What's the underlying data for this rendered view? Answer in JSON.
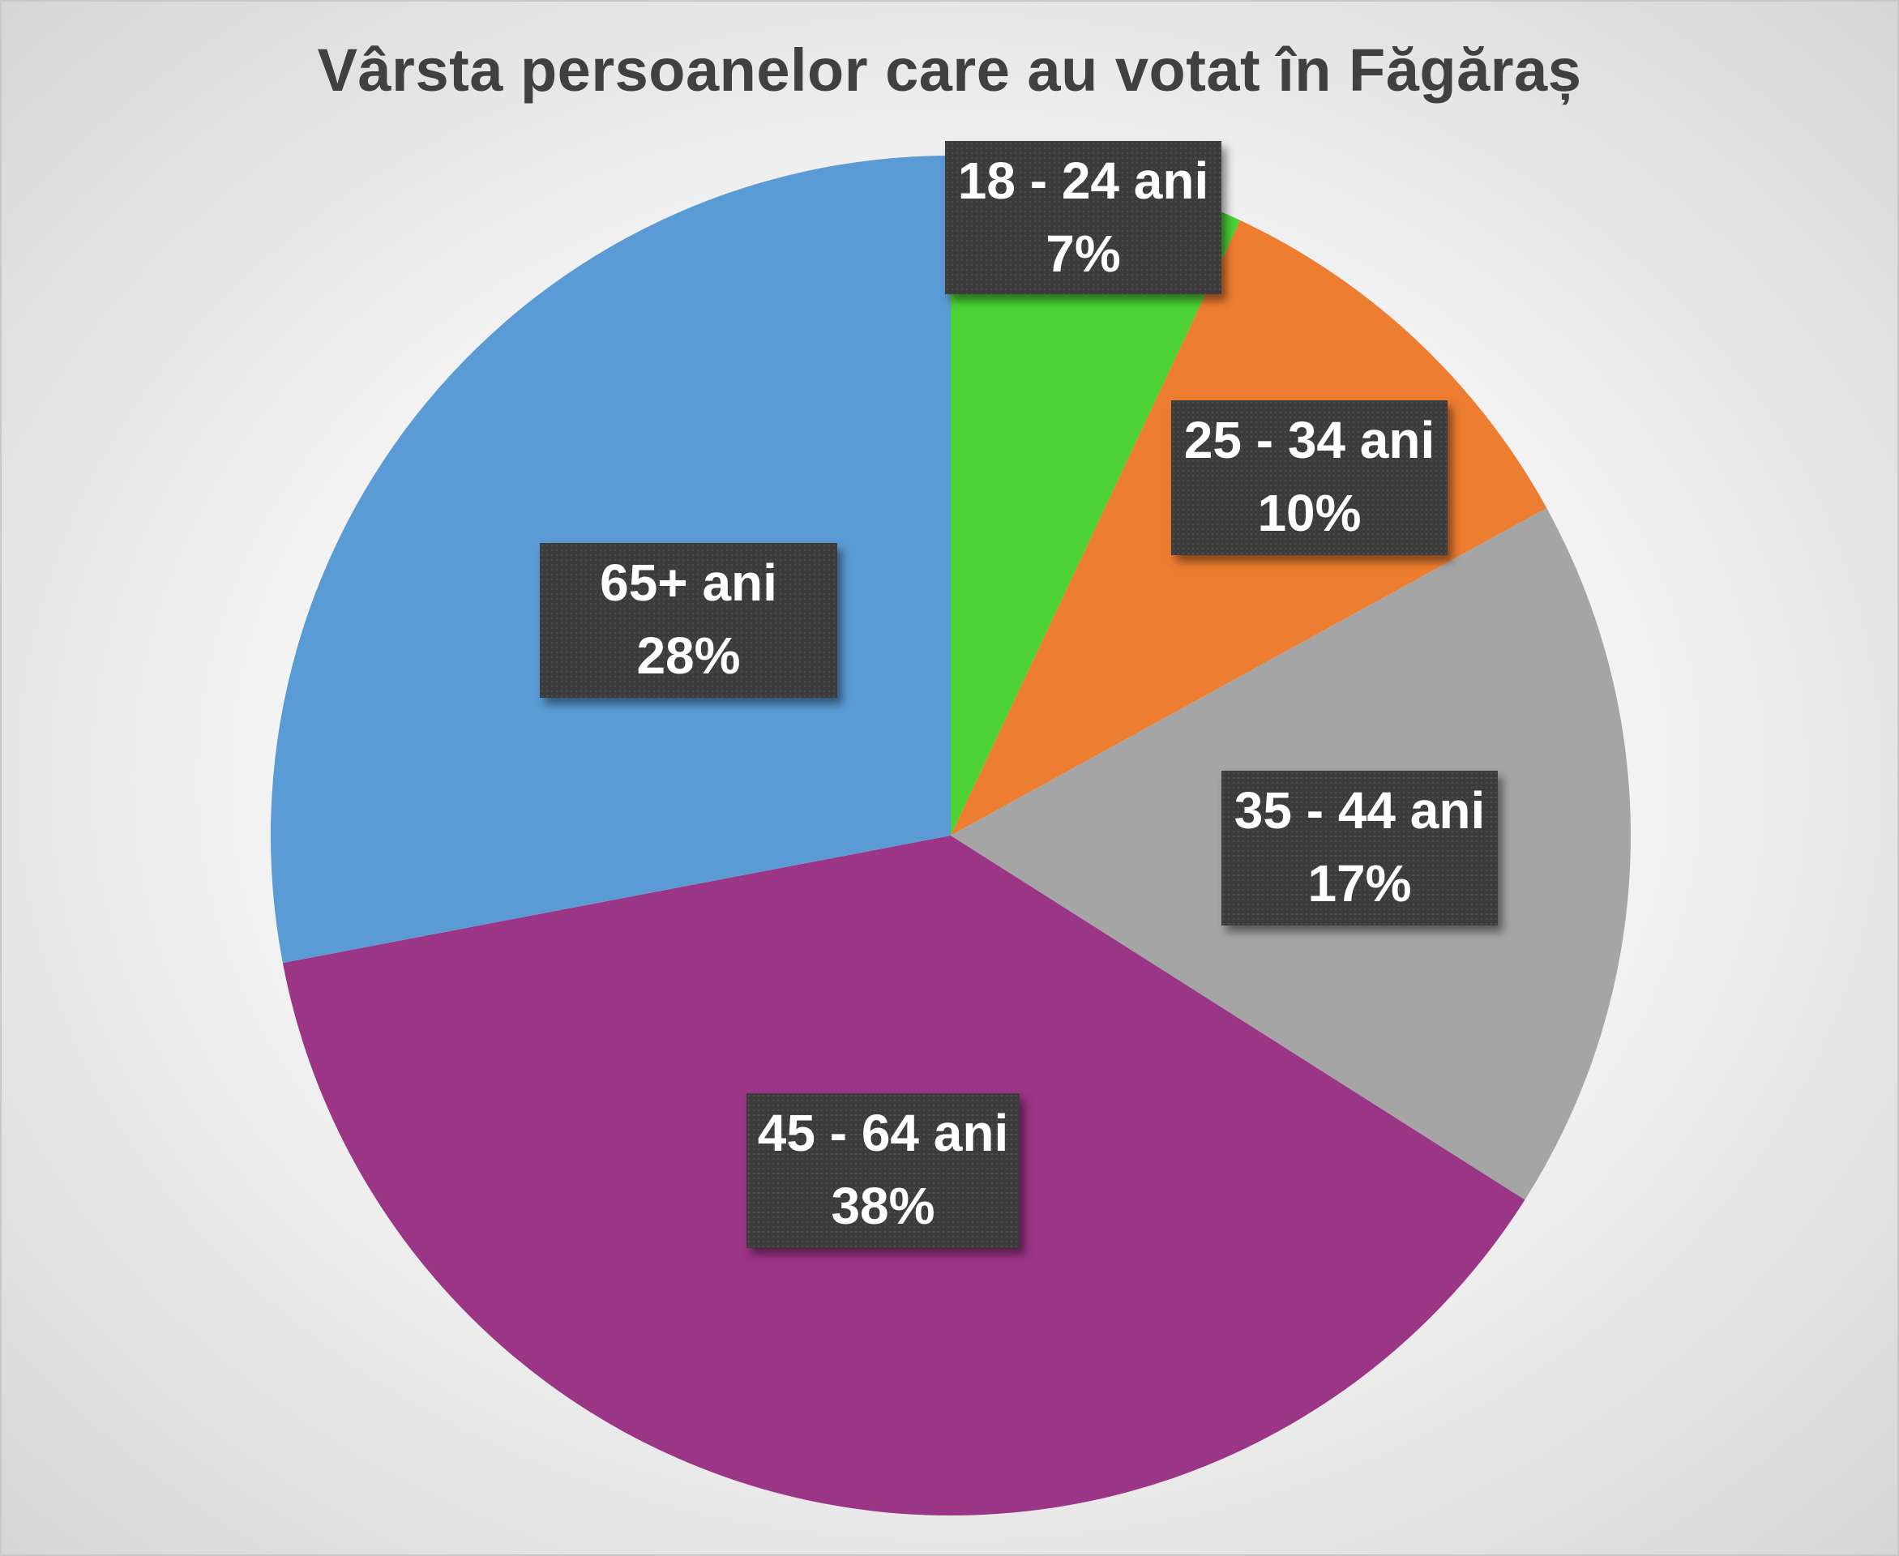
{
  "chart_data": {
    "type": "pie",
    "title": "Vârsta persoanelor care au votat în Făgăraș",
    "slices": [
      {
        "category": "18 - 24 ani",
        "value": 7,
        "label": "7%",
        "color": "#4cd137"
      },
      {
        "category": "25 - 34 ani",
        "value": 10,
        "label": "10%",
        "color": "#ed7d31"
      },
      {
        "category": "35 - 44 ani",
        "value": 17,
        "label": "17%",
        "color": "#a5a5a5"
      },
      {
        "category": "45 - 64 ani",
        "value": 38,
        "label": "38%",
        "color": "#9b3586"
      },
      {
        "category": "65+ ani",
        "value": 28,
        "label": "28%",
        "color": "#5b9bd5"
      }
    ],
    "start_angle_deg": 0,
    "direction": "clockwise",
    "legend": "none",
    "data_labels": "category and percent"
  }
}
